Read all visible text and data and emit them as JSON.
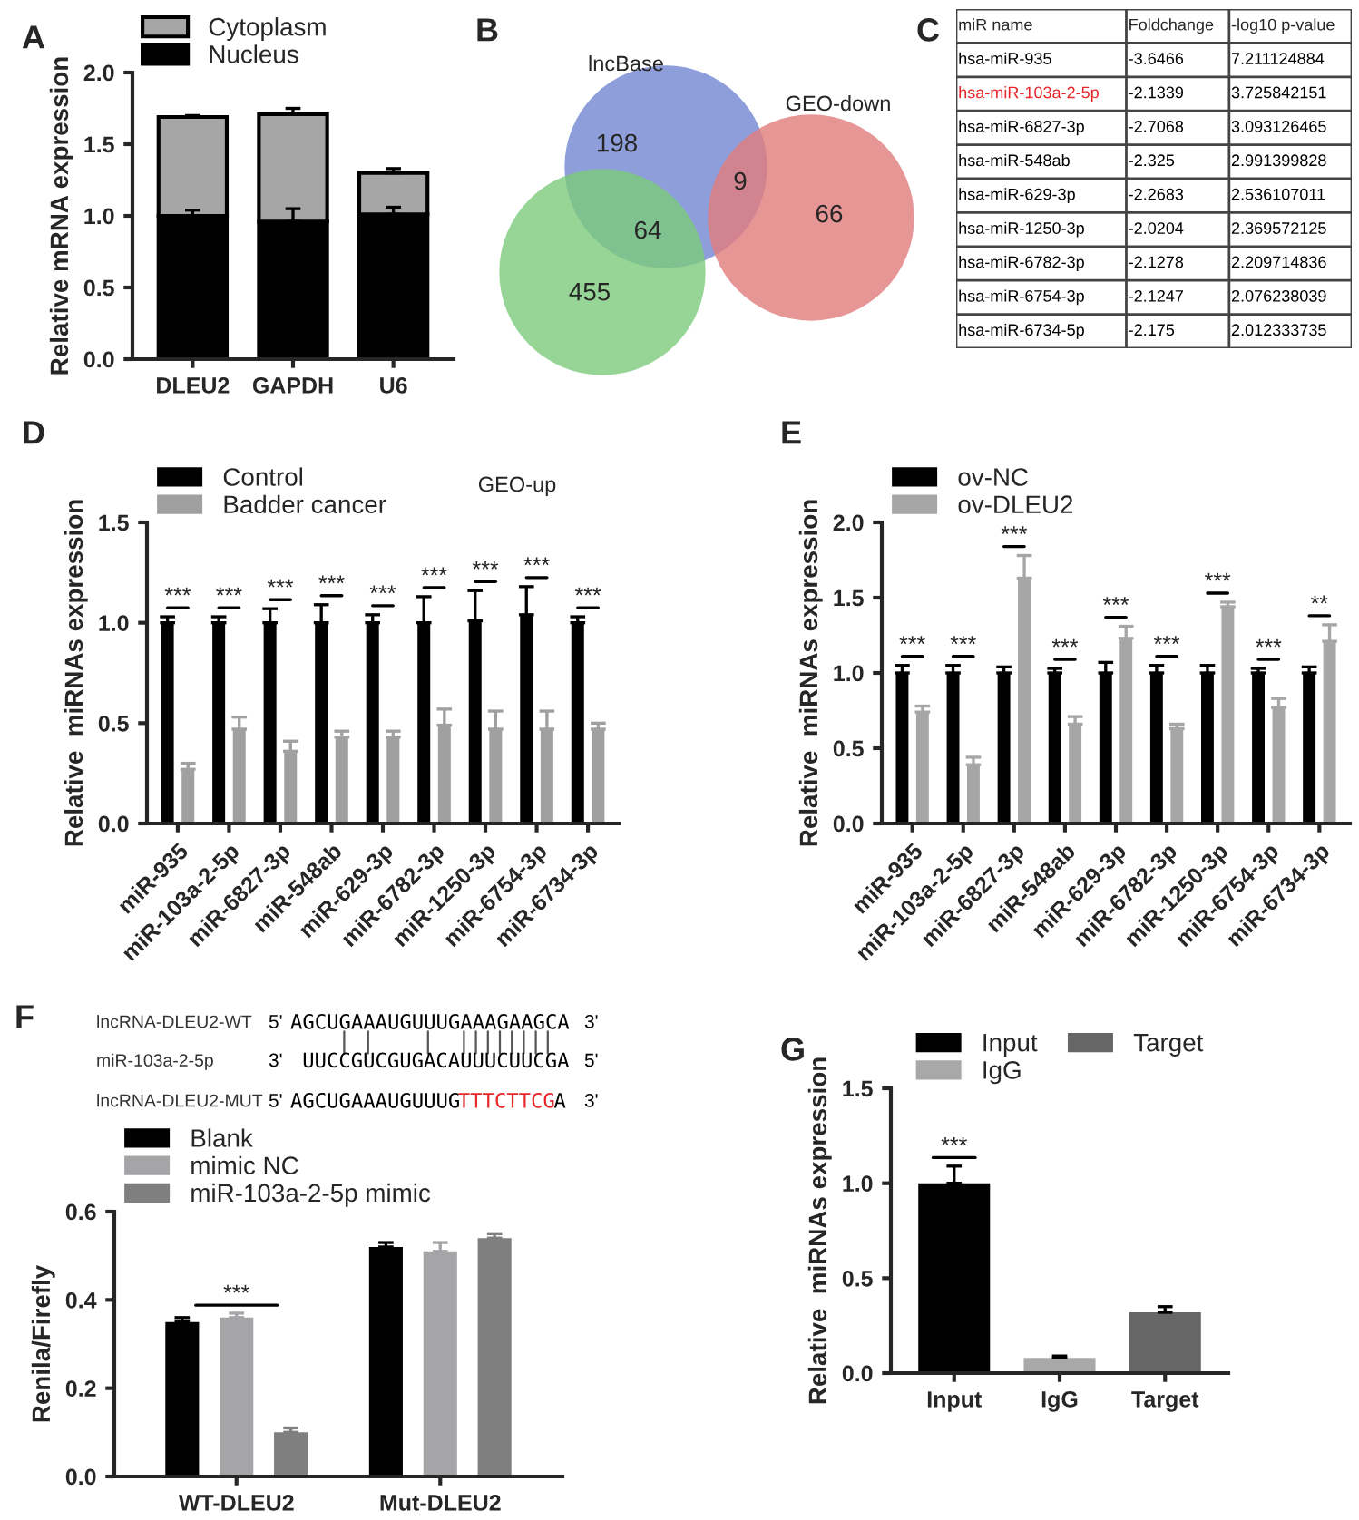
{
  "chart_data": [
    {
      "type": "bar",
      "title": "A",
      "ylabel": "Relative mRNA expression",
      "categories": [
        "DLEU2",
        "GAPDH",
        "U6"
      ],
      "stacked": true,
      "legend": "top left",
      "series": [
        {
          "name": "Nucleus",
          "color": "#000000",
          "values": [
            1.0,
            0.96,
            1.01
          ],
          "errors": [
            [
              1.0,
              1.04
            ],
            [
              0.96,
              1.05
            ],
            [
              1.01,
              1.06
            ]
          ]
        },
        {
          "name": "Cytoplasm",
          "color": "#a6a6a6",
          "values": [
            0.69,
            0.75,
            0.29
          ],
          "errors": [
            [
              1.69,
              1.7
            ],
            [
              1.71,
              1.75
            ],
            [
              1.3,
              1.33
            ]
          ]
        }
      ],
      "ylim": [
        0,
        2
      ],
      "yticks": [
        {
          "value": 0,
          "label": "0.0"
        },
        {
          "value": 0.5,
          "label": "0.5"
        },
        {
          "value": 1,
          "label": "1.0"
        },
        {
          "value": 1.5,
          "label": "1.5"
        },
        {
          "value": 2,
          "label": "2.0"
        }
      ]
    },
    {
      "type": "other",
      "title": "B",
      "colors": [
        "#7286d3",
        "#e27d7d",
        "#7dcb7d"
      ],
      "annotations": [
        "lncBase",
        "GEO-down",
        "GEO-up",
        "198",
        "9",
        "64",
        "455",
        "66"
      ]
    },
    {
      "type": "other",
      "title": "C",
      "categories": [
        "miR name",
        "Foldchange",
        "-log10 p-value"
      ],
      "cell_labels": [
        [
          "hsa-miR-935",
          "-3.6466",
          "7.211124884"
        ],
        [
          "hsa-miR-103a-2-5p",
          "-2.1339",
          "3.725842151"
        ],
        [
          "hsa-miR-6827-3p",
          "-2.7068",
          "3.093126465"
        ],
        [
          "hsa-miR-548ab",
          "-2.325",
          "2.991399828"
        ],
        [
          "hsa-miR-629-3p",
          "-2.2683",
          "2.536107011"
        ],
        [
          "hsa-miR-1250-3p",
          "-2.0204",
          "2.369572125"
        ],
        [
          "hsa-miR-6782-3p",
          "-2.1278",
          "2.209714836"
        ],
        [
          "hsa-miR-6754-3p",
          "-2.1247",
          "2.076238039"
        ],
        [
          "hsa-miR-6734-5p",
          "-2.175",
          "2.012333735"
        ]
      ],
      "colors": [
        "#000000",
        "#e8262a",
        "#000000",
        "#000000",
        "#000000",
        "#000000",
        "#000000",
        "#000000",
        "#000000"
      ]
    },
    {
      "type": "bar",
      "title": "D",
      "ylabel": "Relative  miRNAs expression",
      "categories": [
        "miR-935",
        "miR-103a-2-5p",
        "miR-6827-3p",
        "miR-548ab",
        "miR-629-3p",
        "miR-6782-3p",
        "miR-1250-3p",
        "miR-6754-3p",
        "miR-6734-3p"
      ],
      "legend": "top left",
      "series": [
        {
          "name": "Control",
          "color": "#000000",
          "values": [
            1.0,
            1.0,
            1.0,
            1.0,
            1.0,
            1.0,
            1.01,
            1.04,
            1.0
          ],
          "errors": [
            [
              1.0,
              1.03
            ],
            [
              1.0,
              1.03
            ],
            [
              1.0,
              1.07
            ],
            [
              1.0,
              1.09
            ],
            [
              1.0,
              1.04
            ],
            [
              1.0,
              1.13
            ],
            [
              1.01,
              1.16
            ],
            [
              1.04,
              1.18
            ],
            [
              1.0,
              1.03
            ]
          ]
        },
        {
          "name": "Badder cancer",
          "color": "#a0a0a0",
          "values": [
            0.27,
            0.47,
            0.36,
            0.43,
            0.43,
            0.49,
            0.47,
            0.47,
            0.47
          ],
          "errors": [
            [
              0.27,
              0.3
            ],
            [
              0.47,
              0.53
            ],
            [
              0.36,
              0.41
            ],
            [
              0.43,
              0.46
            ],
            [
              0.43,
              0.46
            ],
            [
              0.49,
              0.57
            ],
            [
              0.47,
              0.56
            ],
            [
              0.47,
              0.56
            ],
            [
              0.47,
              0.5
            ]
          ]
        }
      ],
      "ylim": [
        0,
        1.5
      ],
      "yticks": [
        {
          "value": 0,
          "label": "0.0"
        },
        {
          "value": 0.5,
          "label": "0.5"
        },
        {
          "value": 1,
          "label": "1.0"
        },
        {
          "value": 1.5,
          "label": "1.5"
        }
      ],
      "annotations": [
        "***",
        "***",
        "***",
        "***",
        "***",
        "***",
        "***",
        "***",
        "***"
      ]
    },
    {
      "type": "bar",
      "title": "E",
      "ylabel": "Relative  miRNAs expression",
      "categories": [
        "miR-935",
        "miR-103a-2-5p",
        "miR-6827-3p",
        "miR-548ab",
        "miR-629-3p",
        "miR-6782-3p",
        "miR-1250-3p",
        "miR-6754-3p",
        "miR-6734-3p"
      ],
      "legend": "top left",
      "series": [
        {
          "name": "ov-NC",
          "color": "#000000",
          "values": [
            1.0,
            1.0,
            1.0,
            1.0,
            1.0,
            1.0,
            1.0,
            1.0,
            1.0
          ],
          "errors": [
            [
              1.0,
              1.05
            ],
            [
              1.0,
              1.05
            ],
            [
              1.0,
              1.04
            ],
            [
              1.0,
              1.03
            ],
            [
              1.0,
              1.07
            ],
            [
              1.0,
              1.05
            ],
            [
              1.0,
              1.05
            ],
            [
              1.0,
              1.03
            ],
            [
              1.0,
              1.04
            ]
          ]
        },
        {
          "name": "ov-DLEU2",
          "color": "#a6a6a6",
          "values": [
            0.74,
            0.39,
            1.63,
            0.66,
            1.23,
            0.63,
            1.44,
            0.77,
            1.21
          ],
          "errors": [
            [
              0.74,
              0.78
            ],
            [
              0.39,
              0.44
            ],
            [
              1.63,
              1.78
            ],
            [
              0.66,
              0.71
            ],
            [
              1.23,
              1.31
            ],
            [
              0.63,
              0.66
            ],
            [
              1.44,
              1.47
            ],
            [
              0.77,
              0.83
            ],
            [
              1.21,
              1.32
            ]
          ]
        }
      ],
      "ylim": [
        0,
        2
      ],
      "yticks": [
        {
          "value": 0,
          "label": "0.0"
        },
        {
          "value": 0.5,
          "label": "0.5"
        },
        {
          "value": 1,
          "label": "1.0"
        },
        {
          "value": 1.5,
          "label": "1.5"
        },
        {
          "value": 2,
          "label": "2.0"
        }
      ],
      "annotations": [
        "***",
        "***",
        "***",
        "***",
        "***",
        "***",
        "***",
        "***",
        "**"
      ]
    },
    {
      "type": "other",
      "title": "F",
      "y_categories": [
        "lncRNA-DLEU2-WT",
        "miR-103a-2-5p",
        "lncRNA-DLEU2-MUT"
      ],
      "cell_labels": [
        [
          "5'",
          "AGCUGAAAUGUUUGAAAGAAGCA",
          "3'"
        ],
        [
          "3'",
          "UUCCGUCGUGACAUUUCUUCGA",
          "5'"
        ],
        [
          "5'",
          "AGCUGAAAUGUUUG",
          "TTTCTTCG",
          "A",
          "3'"
        ]
      ],
      "colors": [
        [
          "#000000",
          "#000000",
          "#000000"
        ],
        [
          "#000000",
          "#000000",
          "#000000"
        ],
        [
          "#000000",
          "#000000",
          "#e8262a",
          "#000000",
          "#000000"
        ]
      ]
    },
    {
      "type": "bar",
      "ylabel": "Renila/Firefly",
      "categories": [
        "WT-DLEU2",
        "Mut-DLEU2"
      ],
      "legend": "top left",
      "series": [
        {
          "name": "Blank",
          "color": "#000000",
          "values": [
            0.35,
            0.52
          ],
          "errors": [
            [
              0.35,
              0.36
            ],
            [
              0.52,
              0.53
            ]
          ]
        },
        {
          "name": "mimic NC",
          "color": "#a5a5a8",
          "values": [
            0.36,
            0.51
          ],
          "errors": [
            [
              0.36,
              0.37
            ],
            [
              0.51,
              0.53
            ]
          ]
        },
        {
          "name": "miR-103a-2-5p mimic",
          "color": "#7f7f7f",
          "values": [
            0.1,
            0.54
          ],
          "errors": [
            [
              0.1,
              0.11
            ],
            [
              0.54,
              0.55
            ]
          ]
        }
      ],
      "ylim": [
        0,
        0.6
      ],
      "yticks": [
        {
          "value": 0,
          "label": "0.0"
        },
        {
          "value": 0.2,
          "label": "0.2"
        },
        {
          "value": 0.4,
          "label": "0.4"
        },
        {
          "value": 0.6,
          "label": "0.6"
        }
      ],
      "annotations": [
        "***"
      ]
    },
    {
      "type": "bar",
      "title": "G",
      "ylabel": "Relative  miRNAs expression",
      "categories": [
        "Input",
        "IgG",
        "Target"
      ],
      "legend": "top",
      "series": [
        {
          "name": "Input",
          "color": "#000000",
          "values": [
            1.0,
            null,
            null
          ],
          "errors": [
            [
              1.0,
              1.09
            ],
            null,
            null
          ]
        },
        {
          "name": "IgG",
          "color": "#a8a8a8",
          "values": [
            null,
            0.08,
            null
          ],
          "errors": [
            null,
            [
              0.08,
              0.09
            ],
            null
          ]
        },
        {
          "name": "Target",
          "color": "#666666",
          "values": [
            null,
            null,
            0.32
          ],
          "errors": [
            null,
            null,
            [
              0.32,
              0.35
            ]
          ]
        }
      ],
      "ylim": [
        0,
        1.5
      ],
      "yticks": [
        {
          "value": 0,
          "label": "0.0"
        },
        {
          "value": 0.5,
          "label": "0.5"
        },
        {
          "value": 1,
          "label": "1.0"
        },
        {
          "value": 1.5,
          "label": "1.5"
        }
      ],
      "annotations": [
        "***"
      ]
    }
  ]
}
